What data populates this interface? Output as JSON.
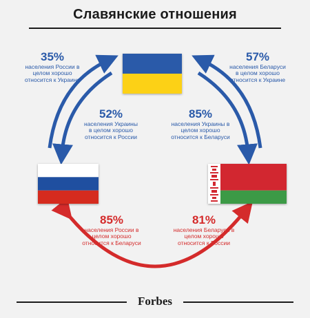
{
  "title": "Славянские отношения",
  "stats": {
    "russia_to_ukraine": {
      "pct": "35%",
      "lines": [
        "населения России в",
        "целом хорошо",
        "относится к Украине"
      ]
    },
    "belarus_to_ukraine": {
      "pct": "57%",
      "lines": [
        "населения Беларуси",
        "в целом хорошо",
        "относится к Украине"
      ]
    },
    "ukraine_to_russia": {
      "pct": "52%",
      "lines": [
        "населения Украины",
        "в целом хорошо",
        "относится к России"
      ]
    },
    "ukraine_to_belarus": {
      "pct": "85%",
      "lines": [
        "населения Украины в",
        "целом хорошо",
        "относится к Беларуси"
      ]
    },
    "russia_to_belarus": {
      "pct": "85%",
      "lines": [
        "населения России в",
        "целом хорошо",
        "относится к Беларуси"
      ]
    },
    "belarus_to_russia": {
      "pct": "81%",
      "lines": [
        "населения Беларуси в",
        "целом хорошо",
        "относится к России"
      ]
    }
  },
  "logo": "Forbes",
  "colors": {
    "blue_arrow": "#2a5aa9",
    "red_arrow": "#d42b2b",
    "ukraine_blue": "#2a5aa9",
    "ukraine_yellow": "#fcd116",
    "russia_blue": "#1f4fa0",
    "russia_red": "#d52b1e",
    "belarus_red": "#d22730",
    "belarus_green": "#3c9a46"
  },
  "flags": [
    "ukraine-flag",
    "russia-flag",
    "belarus-flag"
  ]
}
